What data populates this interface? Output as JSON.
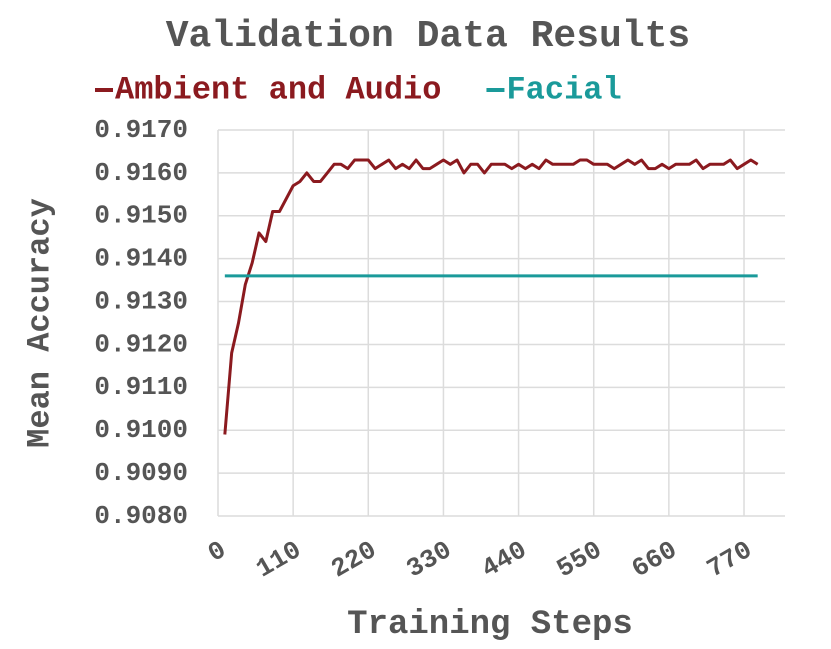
{
  "chart_data": {
    "type": "line",
    "title": "Validation Data Results",
    "x_label": "Training Steps",
    "y_label": "Mean Accuracy",
    "xlim": [
      0,
      830
    ],
    "xticks": [
      0,
      110,
      220,
      330,
      440,
      550,
      660,
      770
    ],
    "ylim": [
      0.908,
      0.917
    ],
    "yticks": [
      {
        "value": 0.908,
        "label": "0.9080"
      },
      {
        "value": 0.909,
        "label": "0.9090"
      },
      {
        "value": 0.91,
        "label": "0.9100"
      },
      {
        "value": 0.911,
        "label": "0.9110"
      },
      {
        "value": 0.912,
        "label": "0.9120"
      },
      {
        "value": 0.913,
        "label": "0.9130"
      },
      {
        "value": 0.914,
        "label": "0.9140"
      },
      {
        "value": 0.915,
        "label": "0.9150"
      },
      {
        "value": 0.916,
        "label": "0.9160"
      },
      {
        "value": 0.917,
        "label": "0.9170"
      }
    ],
    "grid": true,
    "legend": "top",
    "series": [
      {
        "name": "Ambient and Audio",
        "color": "#8b1a1f",
        "x": [
          10,
          20,
          30,
          40,
          50,
          60,
          70,
          80,
          90,
          100,
          110,
          120,
          130,
          140,
          150,
          160,
          170,
          180,
          190,
          200,
          210,
          220,
          230,
          240,
          250,
          260,
          270,
          280,
          290,
          300,
          310,
          320,
          330,
          340,
          350,
          360,
          370,
          380,
          390,
          400,
          410,
          420,
          430,
          440,
          450,
          460,
          470,
          480,
          490,
          500,
          510,
          520,
          530,
          540,
          550,
          560,
          570,
          580,
          590,
          600,
          610,
          620,
          630,
          640,
          650,
          660,
          670,
          680,
          690,
          700,
          710,
          720,
          730,
          740,
          750,
          760,
          770,
          780,
          790
        ],
        "values": [
          0.9099,
          0.9118,
          0.9125,
          0.9134,
          0.9139,
          0.9146,
          0.9144,
          0.9151,
          0.9151,
          0.9154,
          0.9157,
          0.9158,
          0.916,
          0.9158,
          0.9158,
          0.916,
          0.9162,
          0.9162,
          0.9161,
          0.9163,
          0.9163,
          0.9163,
          0.9161,
          0.9162,
          0.9163,
          0.9161,
          0.9162,
          0.9161,
          0.9163,
          0.9161,
          0.9161,
          0.9162,
          0.9163,
          0.9162,
          0.9163,
          0.916,
          0.9162,
          0.9162,
          0.916,
          0.9162,
          0.9162,
          0.9162,
          0.9161,
          0.9162,
          0.9161,
          0.9162,
          0.9161,
          0.9163,
          0.9162,
          0.9162,
          0.9162,
          0.9162,
          0.9163,
          0.9163,
          0.9162,
          0.9162,
          0.9162,
          0.9161,
          0.9162,
          0.9163,
          0.9162,
          0.9163,
          0.9161,
          0.9161,
          0.9162,
          0.9161,
          0.9162,
          0.9162,
          0.9162,
          0.9163,
          0.9161,
          0.9162,
          0.9162,
          0.9162,
          0.9163,
          0.9161,
          0.9162,
          0.9163,
          0.9162
        ]
      },
      {
        "name": "Facial",
        "color": "#1a9a9a",
        "x": [
          10,
          790
        ],
        "values": [
          0.9136,
          0.9136
        ]
      }
    ]
  }
}
